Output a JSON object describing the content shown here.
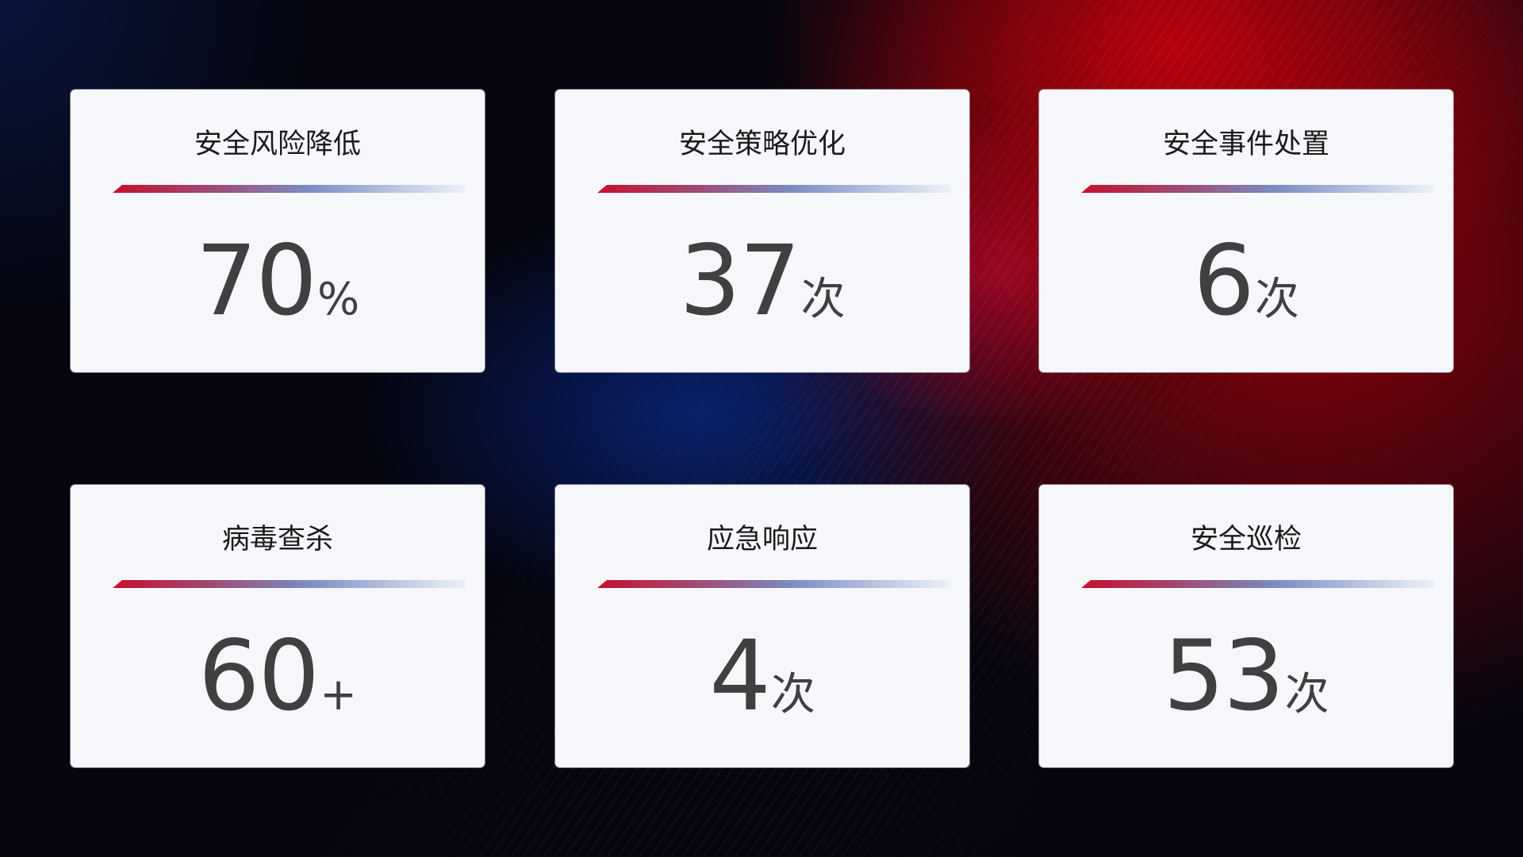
{
  "colors": {
    "accent_red": "#c8102e",
    "accent_blue": "#7a8cc0",
    "card_bg": "#f6f7fb",
    "value_text": "#404040"
  },
  "cards": [
    {
      "title": "安全风险降低",
      "value": "70",
      "unit": "%"
    },
    {
      "title": "安全策略优化",
      "value": "37",
      "unit": "次"
    },
    {
      "title": "安全事件处置",
      "value": "6",
      "unit": "次"
    },
    {
      "title": "病毒查杀",
      "value": "60",
      "unit": "+"
    },
    {
      "title": "应急响应",
      "value": "4",
      "unit": "次"
    },
    {
      "title": "安全巡检",
      "value": "53",
      "unit": "次"
    }
  ]
}
